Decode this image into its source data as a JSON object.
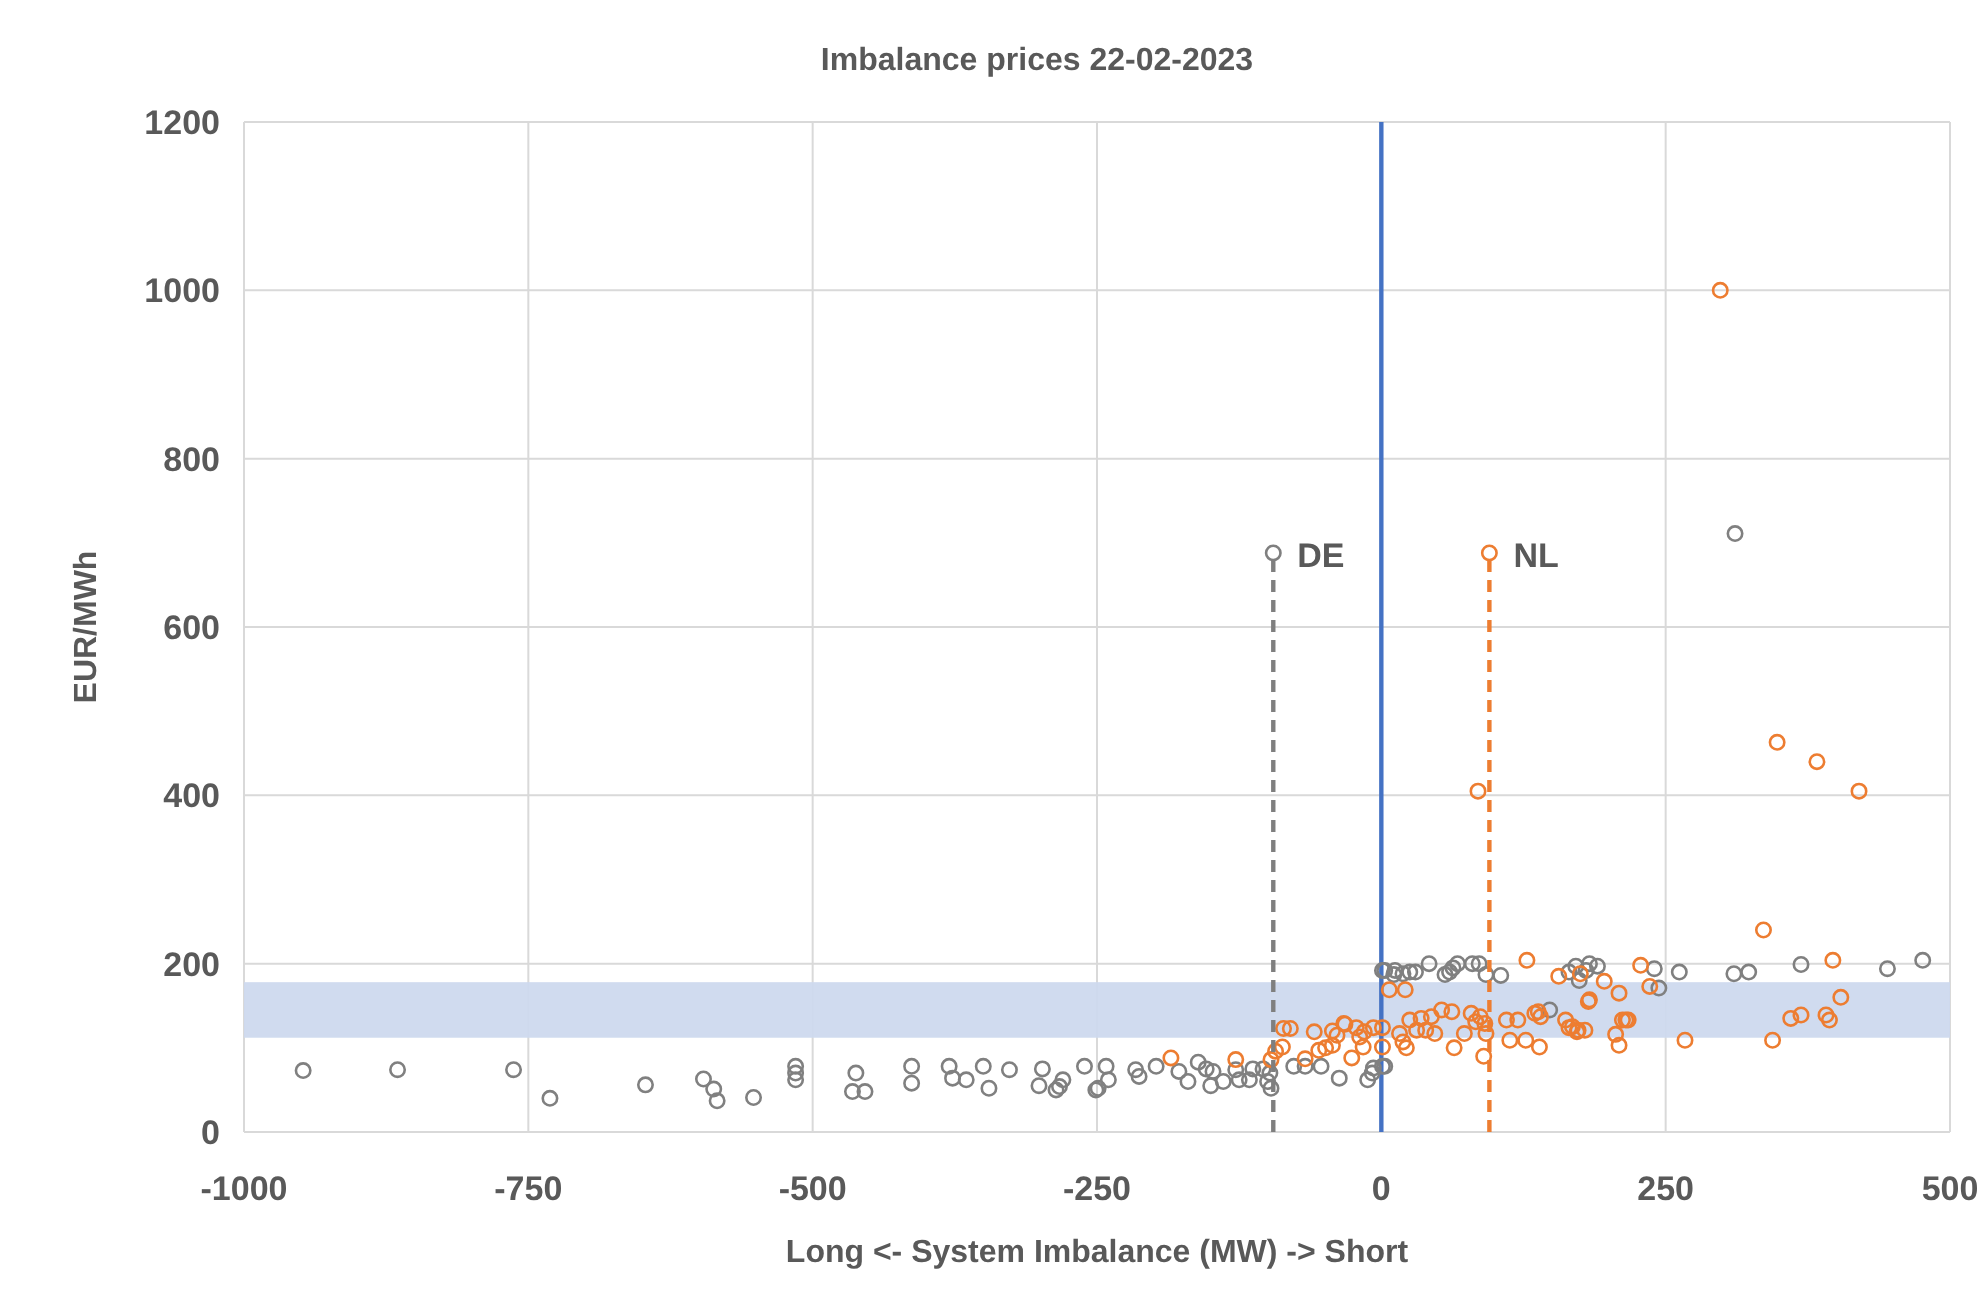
{
  "chart_data": {
    "type": "scatter",
    "title": "Imbalance prices 22-02-2023",
    "xlabel": "Long <- System Imbalance (MW) -> Short",
    "ylabel": "EUR/MWh",
    "xlim": [
      -1000,
      500
    ],
    "xticks": [
      -1000,
      -750,
      -500,
      -250,
      0,
      250,
      500
    ],
    "ylim": [
      0,
      1200
    ],
    "yticks": [
      0,
      200,
      400,
      600,
      800,
      1000,
      1200
    ],
    "grid": true,
    "marker": "circle",
    "ref_lines": [
      {
        "axis": "x",
        "value": 0,
        "color": "#4472c4",
        "line_style": "solid"
      }
    ],
    "bands": [
      {
        "axis": "y",
        "from": 112,
        "to": 178,
        "color": "#cdd9ee"
      }
    ],
    "series": [
      {
        "color": "#808080",
        "x": [
          -948,
          -865,
          -763,
          -731,
          -647,
          -596,
          -587,
          -584,
          -552,
          -515,
          -515,
          -515,
          -462,
          -465,
          -454,
          -413,
          -413,
          -380,
          -377,
          -365,
          -350,
          -345,
          -327,
          -298,
          -301,
          -286,
          -280,
          -283,
          -261,
          -251,
          -249,
          -242,
          -240,
          -216,
          -213,
          -198,
          -178,
          -170,
          -161,
          -154,
          -148,
          -150,
          -139,
          -128,
          -125,
          -113,
          -104,
          -98,
          -100,
          -97,
          -116,
          -77,
          -67,
          -53,
          -37,
          -12,
          -8,
          1,
          -7,
          3,
          1,
          12,
          3,
          11,
          19,
          25,
          30,
          42,
          56,
          60,
          63,
          67,
          80,
          86,
          92,
          105,
          148,
          165,
          171,
          174,
          180,
          183,
          190,
          240,
          244,
          262,
          310,
          323,
          369,
          445,
          476,
          311
        ],
        "values": [
          73,
          74,
          74,
          40,
          56,
          63,
          51,
          37,
          41,
          78,
          70,
          62,
          70,
          48,
          48,
          78,
          58,
          78,
          64,
          62,
          78,
          52,
          74,
          75,
          55,
          50,
          62,
          54,
          78,
          50,
          52,
          78,
          62,
          74,
          66,
          78,
          72,
          60,
          83,
          75,
          72,
          55,
          60,
          74,
          62,
          75,
          75,
          70,
          60,
          52,
          62,
          78,
          78,
          78,
          64,
          62,
          70,
          78,
          76,
          78,
          192,
          192,
          192,
          187,
          188,
          190,
          190,
          200,
          187,
          190,
          195,
          200,
          200,
          200,
          187,
          186,
          145,
          190,
          197,
          180,
          192,
          200,
          197,
          194,
          171,
          190,
          188,
          190,
          199,
          194,
          204,
          711
        ]
      },
      {
        "color": "#ed7d31",
        "x": [
          -185,
          -128,
          -97,
          -93,
          -87,
          -86,
          -80,
          -59,
          -67,
          -55,
          -49,
          -43,
          -43,
          -32,
          -22,
          -19,
          -16,
          -26,
          -7,
          1,
          1,
          -39,
          -33,
          -15,
          7,
          21,
          16,
          19,
          22,
          25,
          31,
          35,
          39,
          44,
          47,
          53,
          62,
          64,
          73,
          79,
          83,
          87,
          91,
          92,
          90,
          85,
          110,
          113,
          120,
          127,
          128,
          135,
          138,
          140,
          139,
          156,
          162,
          168,
          173,
          179,
          183,
          175,
          196,
          209,
          212,
          217,
          228,
          236,
          209,
          206,
          182,
          165,
          172,
          215,
          298,
          348,
          383,
          420,
          336,
          397,
          404,
          360,
          369,
          391,
          394,
          344,
          267
        ],
        "values": [
          88,
          86,
          86,
          96,
          101,
          123,
          123,
          119,
          87,
          97,
          100,
          103,
          120,
          128,
          124,
          113,
          101,
          88,
          124,
          124,
          101,
          115,
          129,
          119,
          169,
          169,
          117,
          107,
          100,
          133,
          121,
          135,
          121,
          137,
          117,
          145,
          143,
          100,
          117,
          141,
          131,
          137,
          129,
          117,
          90,
          405,
          133,
          109,
          133,
          109,
          204,
          141,
          143,
          137,
          101,
          185,
          133,
          125,
          121,
          121,
          157,
          188,
          179,
          165,
          133,
          133,
          198,
          173,
          103,
          116,
          155,
          124,
          119,
          133,
          1000,
          463,
          440,
          405,
          240,
          204,
          160,
          135,
          139,
          139,
          133,
          109,
          109
        ]
      },
      {
        "type": "line",
        "name": "DE",
        "color": "#7f7f7f",
        "line_style": "dashed",
        "x": [
          -95,
          -95
        ],
        "values": [
          0,
          688
        ]
      },
      {
        "type": "line",
        "name": "NL",
        "color": "#ed7d31",
        "line_style": "dashed",
        "x": [
          95,
          95
        ],
        "values": [
          0,
          688
        ]
      }
    ]
  }
}
